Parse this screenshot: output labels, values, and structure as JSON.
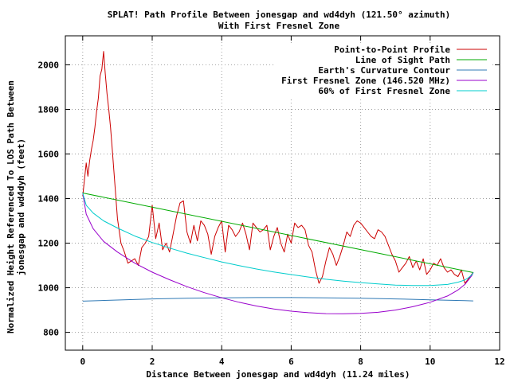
{
  "chart_data": {
    "type": "line",
    "title": "SPLAT! Path Profile Between jonesgap and wd4dyh (121.50° azimuth)",
    "subtitle": "With First Fresnel Zone",
    "xlabel": "Distance Between jonesgap and wd4dyh (11.24 miles)",
    "ylabel_line1": "Normalized Height Referenced To LOS Path Between",
    "ylabel_line2": "jonesgap and wd4dyh (feet)",
    "xlim": [
      -0.5,
      12
    ],
    "ylim": [
      720,
      2130
    ],
    "x_ticks": [
      0,
      2,
      4,
      6,
      8,
      10,
      12
    ],
    "y_ticks": [
      800,
      1000,
      1200,
      1400,
      1600,
      1800,
      2000
    ],
    "x_tick_labels": [
      "0",
      "2",
      "4",
      "6",
      "8",
      "10",
      "12"
    ],
    "y_tick_labels": [
      "800",
      "1000",
      "1200",
      "1400",
      "1600",
      "1800",
      "2000"
    ],
    "grid": true,
    "legend_position": "top-right",
    "series": [
      {
        "name": "Point-to-Point Profile",
        "color": "#cc0000",
        "x": [
          0,
          0.1,
          0.15,
          0.2,
          0.25,
          0.3,
          0.35,
          0.4,
          0.45,
          0.5,
          0.55,
          0.6,
          0.65,
          0.7,
          0.75,
          0.8,
          0.85,
          0.9,
          1.0,
          1.1,
          1.2,
          1.3,
          1.4,
          1.5,
          1.6,
          1.7,
          1.8,
          1.9,
          2.0,
          2.1,
          2.2,
          2.3,
          2.4,
          2.5,
          2.6,
          2.7,
          2.8,
          2.9,
          3.0,
          3.1,
          3.2,
          3.3,
          3.4,
          3.5,
          3.6,
          3.7,
          3.8,
          3.9,
          4.0,
          4.1,
          4.2,
          4.3,
          4.4,
          4.5,
          4.6,
          4.7,
          4.8,
          4.9,
          5.0,
          5.1,
          5.2,
          5.3,
          5.4,
          5.5,
          5.6,
          5.7,
          5.8,
          5.9,
          6.0,
          6.1,
          6.2,
          6.3,
          6.4,
          6.5,
          6.6,
          6.7,
          6.8,
          6.9,
          7.0,
          7.1,
          7.2,
          7.3,
          7.4,
          7.5,
          7.6,
          7.7,
          7.8,
          7.9,
          8.0,
          8.1,
          8.2,
          8.3,
          8.4,
          8.5,
          8.6,
          8.7,
          8.8,
          8.9,
          9.0,
          9.1,
          9.2,
          9.3,
          9.4,
          9.5,
          9.6,
          9.7,
          9.8,
          9.9,
          10.0,
          10.1,
          10.2,
          10.3,
          10.4,
          10.5,
          10.6,
          10.7,
          10.8,
          10.9,
          11.0,
          11.1,
          11.24
        ],
        "y": [
          1410,
          1560,
          1500,
          1570,
          1620,
          1660,
          1720,
          1790,
          1850,
          1950,
          1980,
          2060,
          1960,
          1870,
          1800,
          1720,
          1620,
          1520,
          1310,
          1200,
          1160,
          1110,
          1120,
          1130,
          1100,
          1180,
          1200,
          1230,
          1370,
          1220,
          1290,
          1170,
          1200,
          1160,
          1240,
          1320,
          1380,
          1390,
          1250,
          1200,
          1280,
          1210,
          1300,
          1280,
          1240,
          1150,
          1230,
          1270,
          1300,
          1160,
          1280,
          1260,
          1230,
          1250,
          1290,
          1240,
          1170,
          1290,
          1270,
          1250,
          1260,
          1280,
          1170,
          1230,
          1270,
          1200,
          1160,
          1240,
          1200,
          1290,
          1270,
          1280,
          1260,
          1190,
          1160,
          1080,
          1020,
          1050,
          1120,
          1180,
          1150,
          1100,
          1140,
          1190,
          1250,
          1230,
          1280,
          1300,
          1290,
          1270,
          1250,
          1230,
          1220,
          1260,
          1250,
          1230,
          1190,
          1150,
          1120,
          1070,
          1090,
          1110,
          1140,
          1090,
          1120,
          1080,
          1130,
          1060,
          1080,
          1110,
          1100,
          1130,
          1090,
          1070,
          1080,
          1060,
          1050,
          1080,
          1020,
          1040,
          1070
        ]
      },
      {
        "name": "Line of Sight Path",
        "color": "#00aa00",
        "x": [
          0,
          11.24
        ],
        "y": [
          1425,
          1068
        ]
      },
      {
        "name": "Earth's Curvature Contour",
        "color": "#2f79b5",
        "x": [
          0,
          1,
          2,
          3,
          4,
          5,
          5.62,
          6,
          7,
          8,
          9,
          10,
          11,
          11.24
        ],
        "y": [
          940,
          945,
          950,
          953,
          955,
          956,
          956,
          956,
          955,
          953,
          950,
          946,
          942,
          941
        ]
      },
      {
        "name": "First Fresnel Zone (146.520 MHz)",
        "color": "#9900cc",
        "x": [
          0,
          0.1,
          0.3,
          0.6,
          1.0,
          1.5,
          2.0,
          2.5,
          3.0,
          3.5,
          4.0,
          4.5,
          5.0,
          5.5,
          6.0,
          6.5,
          7.0,
          7.5,
          8.0,
          8.5,
          9.0,
          9.5,
          10.0,
          10.5,
          10.8,
          11.0,
          11.1,
          11.2,
          11.24
        ],
        "y": [
          1425,
          1330,
          1265,
          1208,
          1160,
          1110,
          1070,
          1036,
          1005,
          978,
          955,
          935,
          918,
          905,
          895,
          888,
          884,
          883,
          885,
          890,
          900,
          915,
          935,
          963,
          990,
          1015,
          1035,
          1055,
          1068
        ]
      },
      {
        "name": "60% of First Fresnel Zone",
        "color": "#00cccc",
        "x": [
          0,
          0.1,
          0.3,
          0.6,
          1.0,
          1.5,
          2.0,
          2.5,
          3.0,
          3.5,
          4.0,
          4.5,
          5.0,
          5.5,
          6.0,
          6.5,
          7.0,
          7.5,
          8.0,
          8.5,
          9.0,
          9.5,
          10.0,
          10.5,
          10.8,
          11.0,
          11.1,
          11.2,
          11.24
        ],
        "y": [
          1425,
          1370,
          1335,
          1300,
          1268,
          1232,
          1203,
          1178,
          1155,
          1135,
          1116,
          1099,
          1084,
          1071,
          1059,
          1048,
          1038,
          1030,
          1023,
          1017,
          1012,
          1010,
          1010,
          1015,
          1025,
          1035,
          1045,
          1058,
          1068
        ]
      }
    ]
  }
}
